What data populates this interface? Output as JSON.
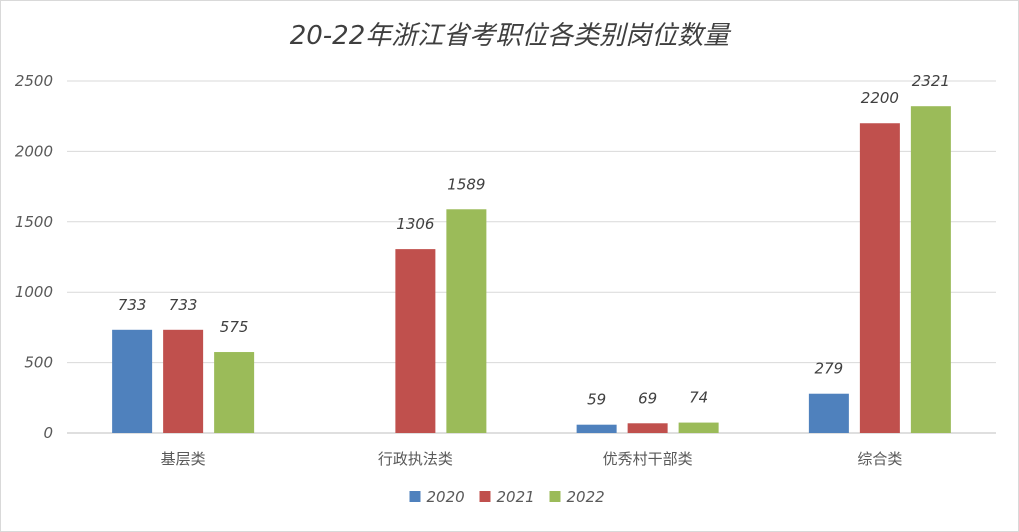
{
  "chart_data": {
    "type": "bar",
    "title": "20-22年浙江省考职位各类别岗位数量",
    "xlabel": "",
    "ylabel": "",
    "ylim": [
      0,
      2500
    ],
    "yticks": [
      "0",
      "500",
      "1000",
      "1500",
      "2000",
      "2500"
    ],
    "grid": true,
    "legend_position": "bottom",
    "categories": [
      "基层类",
      "行政执法类",
      "优秀村干部类",
      "综合类"
    ],
    "series": [
      {
        "name": "2020",
        "color": "#4f81bd",
        "values": [
          733,
          null,
          59,
          279
        ]
      },
      {
        "name": "2021",
        "color": "#c0504d",
        "values": [
          733,
          1306,
          69,
          2200
        ]
      },
      {
        "name": "2022",
        "color": "#9bbb59",
        "values": [
          575,
          1589,
          74,
          2321
        ]
      }
    ]
  }
}
